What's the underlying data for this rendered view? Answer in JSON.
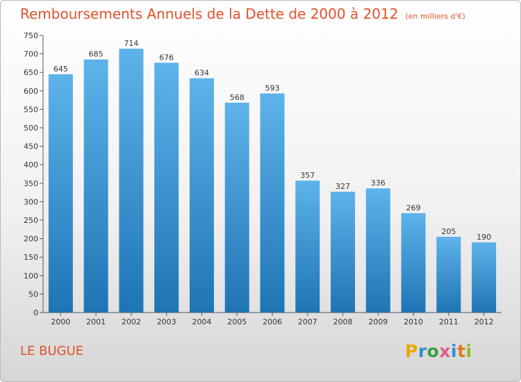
{
  "title": "Remboursements Annuels de la Dette de 2000 à 2012",
  "unit": "(en milliers d'€)",
  "commune": "LE BUGUE",
  "logo": {
    "letters": [
      "P",
      "r",
      "o",
      "x",
      "i",
      "t",
      "i"
    ],
    "colors": [
      "#e9a800",
      "#2e8fcf",
      "#3aa03a",
      "#e05a8a",
      "#2e8fcf",
      "#e07a20",
      "#8fba2a"
    ]
  },
  "colors": {
    "bar_top": "#5eb3ea",
    "bar_bottom": "#1f74b4",
    "title": "#e0522c"
  },
  "chart_data": {
    "type": "bar",
    "title": "Remboursements Annuels de la Dette de 2000 à 2012",
    "categories": [
      "2000",
      "2001",
      "2002",
      "2003",
      "2004",
      "2005",
      "2006",
      "2007",
      "2008",
      "2009",
      "2010",
      "2011",
      "2012"
    ],
    "values": [
      645,
      685,
      714,
      676,
      634,
      568,
      593,
      357,
      327,
      336,
      269,
      205,
      190
    ],
    "ylim": [
      0,
      750
    ],
    "yticks": [
      0,
      50,
      100,
      150,
      200,
      250,
      300,
      350,
      400,
      450,
      500,
      550,
      600,
      650,
      700,
      750
    ],
    "grid": false,
    "legend": "none"
  }
}
